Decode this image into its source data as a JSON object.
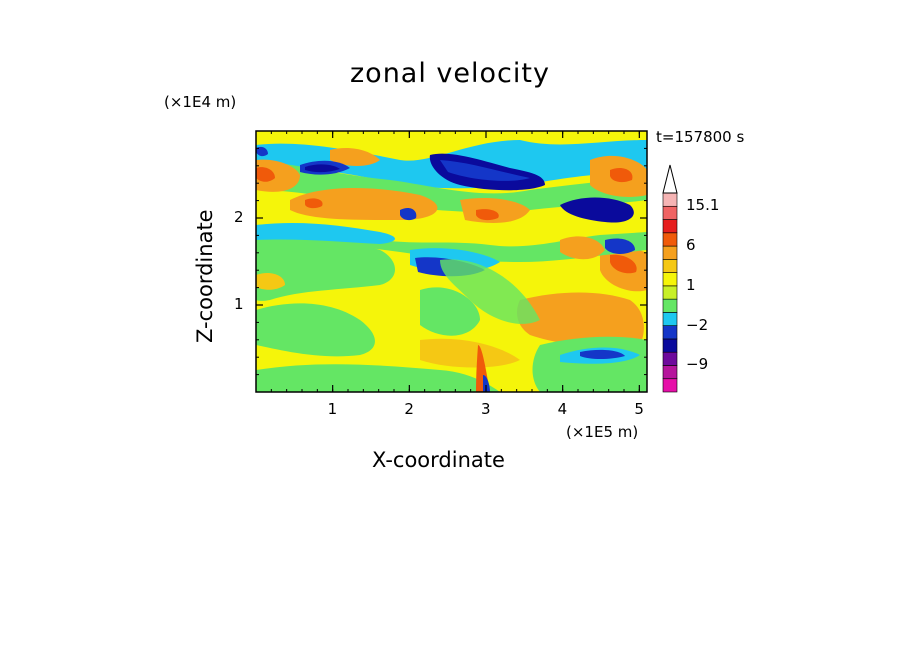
{
  "chart_data": {
    "type": "heatmap",
    "title": "zonal velocity",
    "xlabel": "X-coordinate",
    "ylabel": "Z-coordinate",
    "x_scale_label": "(×1E5 m)",
    "y_scale_label": "(×1E4 m)",
    "time_label": "t=157800 s",
    "xlim": [
      0,
      5.1
    ],
    "ylim": [
      0,
      3.0
    ],
    "xticks": [
      "1",
      "2",
      "3",
      "4",
      "5"
    ],
    "yticks": [
      "1",
      "2"
    ],
    "colorbar": {
      "levels": [
        -15,
        -12,
        -9,
        -6,
        -4,
        -2,
        -1,
        0,
        1,
        2,
        4,
        6,
        9,
        12,
        15.1
      ],
      "colors": [
        "#e60fa8",
        "#b5159c",
        "#6e0a9c",
        "#0a0a9c",
        "#1436c8",
        "#1ec8f0",
        "#64e664",
        "#c8f028",
        "#f5f50a",
        "#f5c814",
        "#f5a01e",
        "#f05a0a",
        "#e61e1e",
        "#f06464",
        "#f5b4b4"
      ],
      "labels": [
        "15.1",
        "6",
        "1",
        "−2",
        "−9"
      ],
      "label_values": [
        15.1,
        6,
        1,
        -2,
        -9
      ]
    },
    "field_features": [
      {
        "x": 3.3,
        "z": 2.5,
        "u": -7,
        "note": "upper core"
      },
      {
        "x": 0.8,
        "z": 2.5,
        "u": -6
      },
      {
        "x": 2.3,
        "z": 1.45,
        "u": -5
      },
      {
        "x": 4.5,
        "z": 2.05,
        "u": -6
      },
      {
        "x": 4.8,
        "z": 1.7,
        "u": -4
      },
      {
        "x": 4.5,
        "z": 0.42,
        "u": -3
      },
      {
        "x": 0.15,
        "z": 2.5,
        "u": 4
      },
      {
        "x": 1.0,
        "z": 2.05,
        "u": 3
      },
      {
        "x": 3.0,
        "z": 2.4,
        "u": 3
      },
      {
        "x": 4.8,
        "z": 2.4,
        "u": 4
      },
      {
        "x": 4.8,
        "z": 1.4,
        "u": 4
      },
      {
        "x": 4.4,
        "z": 0.9,
        "u": 2
      }
    ]
  }
}
